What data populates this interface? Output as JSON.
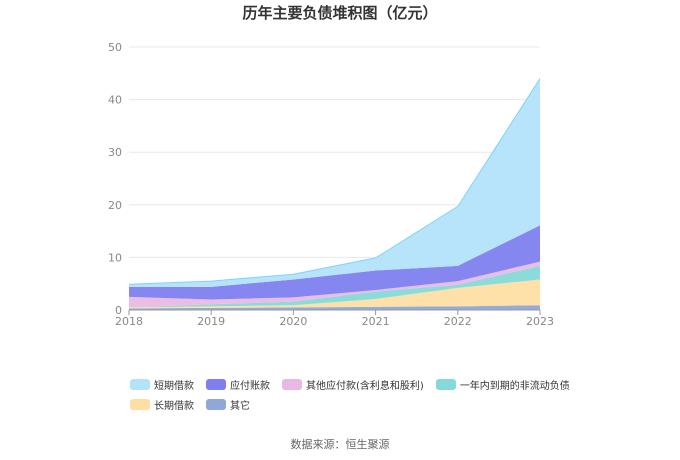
{
  "chart_data": {
    "type": "area",
    "title": "历年主要负债堆积图（亿元）",
    "x": [
      "2018",
      "2019",
      "2020",
      "2021",
      "2022",
      "2023"
    ],
    "ylim": [
      0,
      50
    ],
    "yticks": [
      0,
      10,
      20,
      30,
      40,
      50
    ],
    "grid": true,
    "legend_position": "bottom",
    "stacked": true,
    "series": [
      {
        "name": "其它",
        "color": "#8fa8d8",
        "values": [
          0.3,
          0.4,
          0.5,
          0.6,
          0.7,
          0.9
        ]
      },
      {
        "name": "长期借款",
        "color": "#fddfa3",
        "values": [
          0.2,
          0.3,
          0.4,
          1.5,
          3.5,
          4.9
        ]
      },
      {
        "name": "一年内到期的非流动负债",
        "color": "#86d9d9",
        "values": [
          0.0,
          0.4,
          0.7,
          1.4,
          0.6,
          2.6
        ]
      },
      {
        "name": "其他应付款(含利息和股利)",
        "color": "#e9b9e4",
        "values": [
          2.0,
          0.9,
          0.8,
          0.3,
          0.7,
          0.8
        ]
      },
      {
        "name": "应付账款",
        "color": "#7f7ff0",
        "values": [
          1.9,
          2.4,
          3.4,
          3.7,
          2.9,
          6.9
        ]
      },
      {
        "name": "短期借款",
        "color": "#b3e3fb",
        "values": [
          0.5,
          1.1,
          1.0,
          2.4,
          11.3,
          27.9
        ]
      }
    ],
    "legend_order": [
      "短期借款",
      "应付账款",
      "其他应付款(含利息和股利)",
      "一年内到期的非流动负债",
      "长期借款",
      "其它"
    ],
    "line_color": "#7fd4f6",
    "source": "数据来源：恒生聚源"
  }
}
